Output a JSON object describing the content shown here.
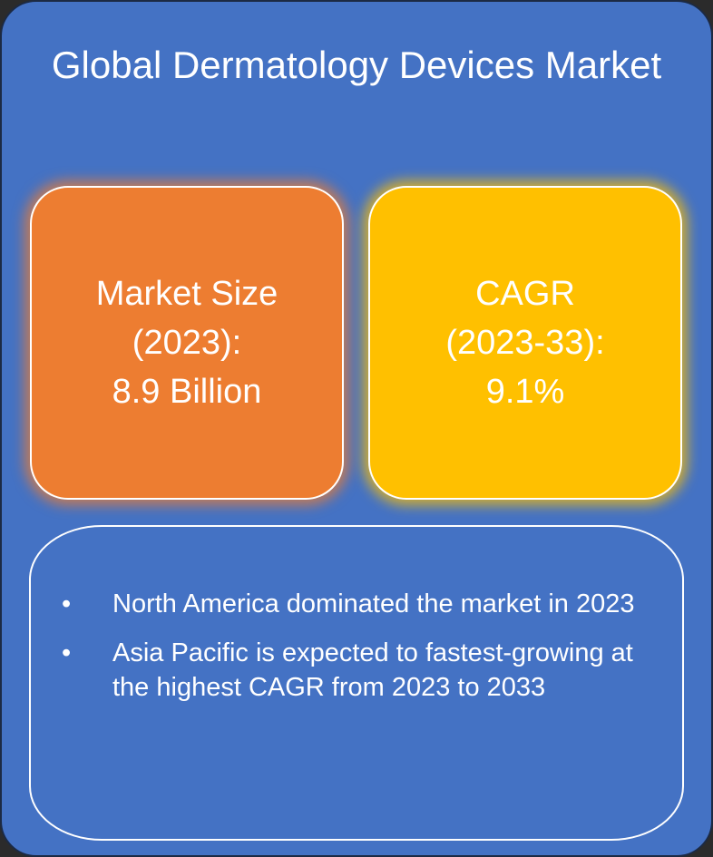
{
  "title": "Global Dermatology Devices Market",
  "cards": [
    {
      "label": "Market Size",
      "period": "(2023):",
      "value": "8.9 Billion"
    },
    {
      "label": "CAGR",
      "period": "(2023-33):",
      "value": "9.1%"
    }
  ],
  "bullets": [
    "North America dominated the market in 2023",
    "Asia Pacific is expected to fastest-growing at the highest CAGR from 2023 to 2033"
  ]
}
